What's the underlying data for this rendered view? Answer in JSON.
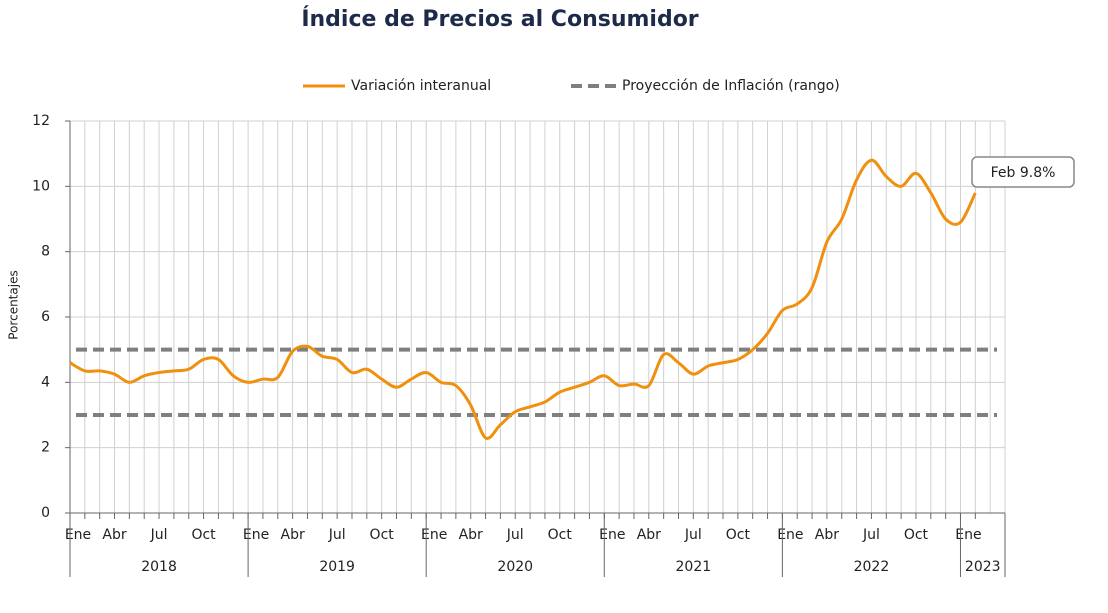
{
  "chart_data": {
    "type": "line",
    "title": "Índice de Precios al Consumidor",
    "y_label": "Porcentajes",
    "categories": [
      "Ene",
      null,
      null,
      "Abr",
      null,
      null,
      "Jul",
      null,
      null,
      "Oct",
      null,
      null,
      "Ene",
      null,
      null,
      "Abr",
      null,
      null,
      "Jul",
      null,
      null,
      "Oct",
      null,
      null,
      "Ene",
      null,
      null,
      "Abr",
      null,
      null,
      "Jul",
      null,
      null,
      "Oct",
      null,
      null,
      "Ene",
      null,
      null,
      "Abr",
      null,
      null,
      "Jul",
      null,
      null,
      "Oct",
      null,
      null,
      "Ene",
      null,
      null,
      "Abr",
      null,
      null,
      "Jul",
      null,
      null,
      "Oct",
      null,
      null,
      "Ene",
      null
    ],
    "years": [
      "2018",
      "2019",
      "2020",
      "2021",
      "2022",
      "2023"
    ],
    "series": [
      {
        "name": "Variación interanual",
        "color": "#f0900f",
        "values": [
          4.6,
          4.35,
          4.35,
          4.25,
          4.0,
          4.2,
          4.3,
          4.35,
          4.4,
          4.7,
          4.7,
          4.2,
          4.0,
          4.1,
          4.15,
          4.95,
          5.1,
          4.8,
          4.7,
          4.3,
          4.4,
          4.1,
          3.85,
          4.1,
          4.3,
          4.0,
          3.9,
          3.3,
          2.3,
          2.7,
          3.1,
          3.25,
          3.4,
          3.7,
          3.85,
          4.0,
          4.2,
          3.9,
          3.95,
          3.9,
          4.85,
          4.6,
          4.25,
          4.5,
          4.6,
          4.7,
          5.0,
          5.5,
          6.2,
          6.4,
          6.9,
          8.3,
          9.0,
          10.2,
          10.8,
          10.3,
          10.0,
          10.4,
          9.8,
          9.0,
          8.9,
          9.8
        ]
      }
    ],
    "reference_lines": {
      "name": "Proyección de Inflación (rango)",
      "color": "#7f7f7f",
      "values": [
        3,
        5
      ]
    },
    "annotation": "Feb 9.8%",
    "ylim": [
      0,
      12
    ],
    "yticks": [
      0,
      2,
      4,
      6,
      8,
      10,
      12
    ],
    "grid": true
  }
}
